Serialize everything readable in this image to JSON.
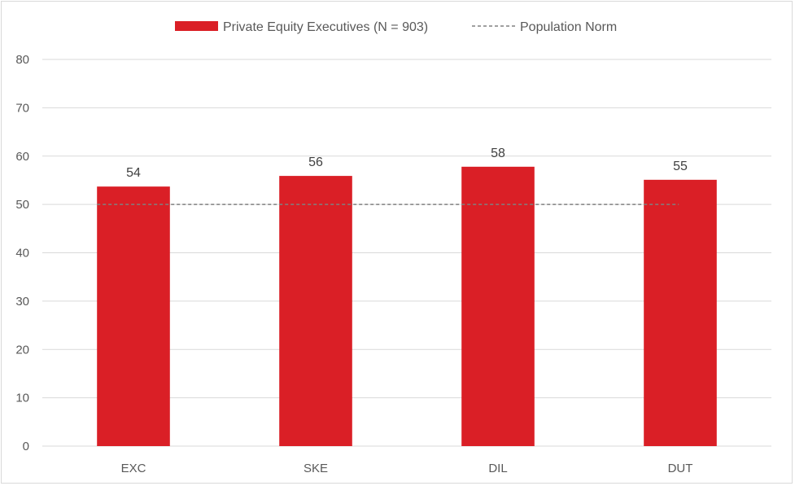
{
  "chart_data": {
    "type": "bar",
    "title": "",
    "xlabel": "",
    "ylabel": "",
    "categories": [
      "EXC",
      "SKE",
      "DIL",
      "DUT"
    ],
    "series": [
      {
        "name": "Private Equity Executives (N = 903)",
        "values": [
          53.7,
          55.9,
          57.8,
          55.1
        ],
        "labels": [
          "54",
          "56",
          "58",
          "55"
        ],
        "color": "#da1f26"
      }
    ],
    "reference_line": {
      "name": "Population Norm",
      "value": 50,
      "style": "dashed",
      "color": "#808080"
    },
    "ylim": [
      0,
      80
    ],
    "yticks": [
      0,
      10,
      20,
      30,
      40,
      50,
      60,
      70,
      80
    ],
    "grid": true,
    "legend": "top-center"
  }
}
